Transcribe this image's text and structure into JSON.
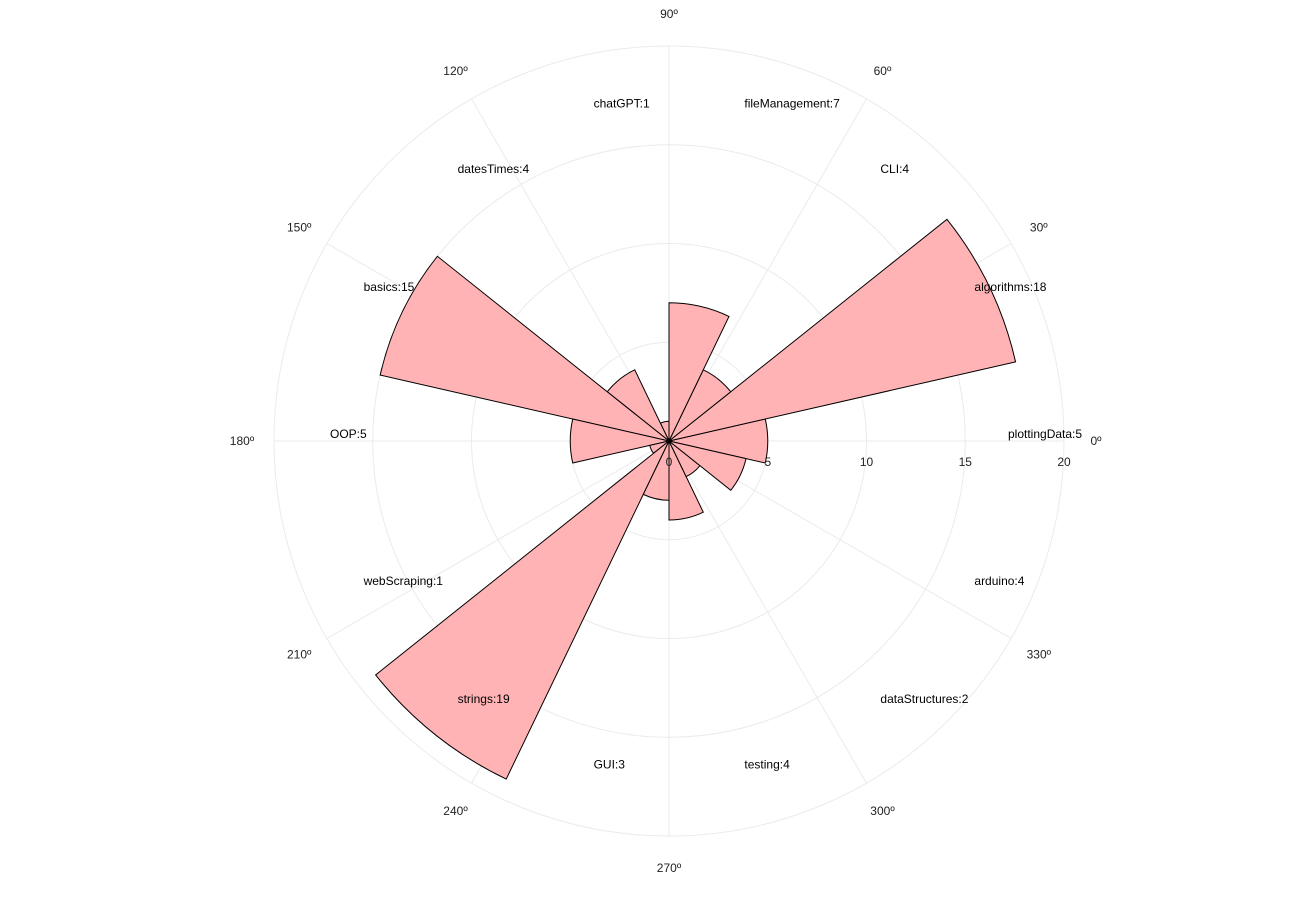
{
  "chart_data": {
    "type": "bar",
    "subtype": "polar-rose",
    "title": "",
    "categories": [
      "plottingData",
      "algorithms",
      "CLI",
      "fileManagement",
      "chatGPT",
      "datesTimes",
      "basics",
      "OOP",
      "webScraping",
      "strings",
      "GUI",
      "testing",
      "dataStructures",
      "arduino"
    ],
    "values": [
      5,
      18,
      4,
      7,
      1,
      4,
      15,
      5,
      1,
      19,
      3,
      4,
      2,
      4
    ],
    "category_labels": [
      "plottingData:5",
      "algorithms:18",
      "CLI:4",
      "fileManagement:7",
      "chatGPT:1",
      "datesTimes:4",
      "basics:15",
      "OOP:5",
      "webScraping:1",
      "strings:19",
      "GUI:3",
      "testing:4",
      "dataStructures:2",
      "arduino:4"
    ],
    "angular_ticks": [
      0,
      30,
      60,
      90,
      120,
      150,
      180,
      210,
      240,
      270,
      300,
      330
    ],
    "angular_tick_labels": [
      "0º",
      "30º",
      "60º",
      "90º",
      "120º",
      "150º",
      "180º",
      "210º",
      "240º",
      "270º",
      "300º",
      "330º"
    ],
    "radial_range": [
      0,
      20
    ],
    "radial_ticks": [
      0,
      5,
      10,
      15,
      20
    ],
    "radial_tick_labels": [
      "0",
      "5",
      "10",
      "15",
      "20"
    ],
    "grid": true,
    "legend": "none",
    "colors": {
      "fill": "#ffb3b5",
      "stroke": "#000000",
      "grid": "#ebebeb",
      "text": "#222222"
    }
  }
}
